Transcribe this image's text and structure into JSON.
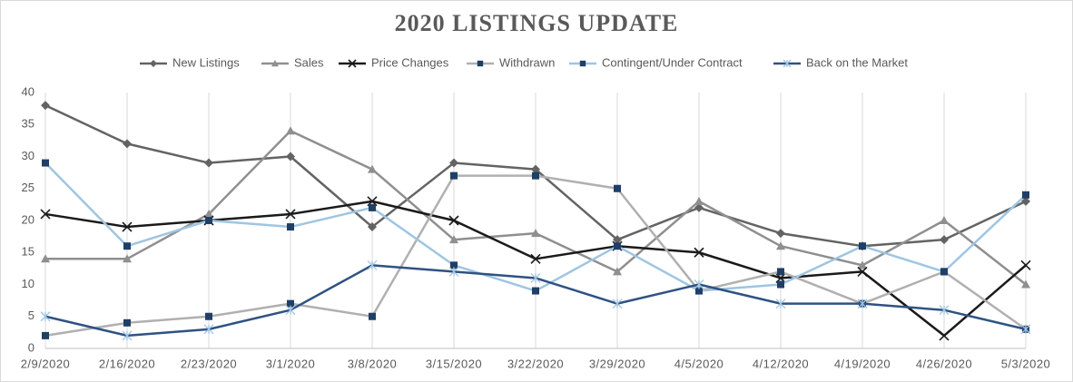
{
  "chart_data": {
    "type": "line",
    "title": "2020 LISTINGS UPDATE",
    "categories": [
      "2/9/2020",
      "2/16/2020",
      "2/23/2020",
      "3/1/2020",
      "3/8/2020",
      "3/15/2020",
      "3/22/2020",
      "3/29/2020",
      "4/5/2020",
      "4/12/2020",
      "4/19/2020",
      "4/26/2020",
      "5/3/2020"
    ],
    "series": [
      {
        "name": "New Listings",
        "color": "#636363",
        "marker": "diamond",
        "marker_color": "#636363",
        "values": [
          38,
          32,
          29,
          30,
          19,
          29,
          28,
          17,
          22,
          18,
          16,
          17,
          23
        ]
      },
      {
        "name": "Sales",
        "color": "#8f8f8f",
        "marker": "triangle",
        "marker_color": "#8f8f8f",
        "values": [
          14,
          14,
          21,
          34,
          28,
          17,
          18,
          12,
          23,
          16,
          13,
          20,
          10
        ]
      },
      {
        "name": "Price Changes",
        "color": "#1a1a1a",
        "marker": "x",
        "marker_color": "#1a1a1a",
        "values": [
          21,
          19,
          20,
          21,
          23,
          20,
          14,
          16,
          15,
          11,
          12,
          2,
          13
        ]
      },
      {
        "name": "Withdrawn",
        "color": "#b0b0b0",
        "marker": "square",
        "marker_color": "#1f3f66",
        "values": [
          2,
          4,
          5,
          7,
          5,
          27,
          27,
          25,
          9,
          12,
          7,
          12,
          3
        ]
      },
      {
        "name": "Contingent/Under Contract",
        "color": "#9fc5e2",
        "marker": "square",
        "marker_color": "#1f3f66",
        "values": [
          29,
          16,
          20,
          19,
          22,
          13,
          9,
          16,
          9,
          10,
          16,
          12,
          24
        ]
      },
      {
        "name": "Back on the Market",
        "color": "#2f5283",
        "marker": "star",
        "marker_color": "#9fc5e2",
        "values": [
          5,
          2,
          3,
          6,
          13,
          12,
          11,
          7,
          10,
          7,
          7,
          6,
          3
        ]
      }
    ],
    "ylim": [
      0,
      40
    ],
    "yticks": [
      0,
      5,
      10,
      15,
      20,
      25,
      30,
      35,
      40
    ],
    "grid": "vertical",
    "legend": "top"
  }
}
